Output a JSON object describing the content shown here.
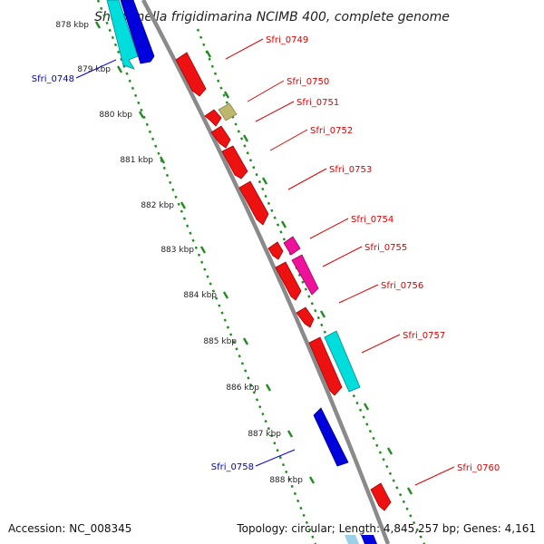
{
  "title": "Shewanella frigidimarina NCIMB 400, complete genome",
  "footer": {
    "accession": "Accession: NC_008345",
    "summary": "Topology: circular; Length: 4,845,257 bp; Genes: 4,161"
  },
  "scale_labels": [
    "878 kbp",
    "879 kbp",
    "880 kbp",
    "881 kbp",
    "882 kbp",
    "883 kbp",
    "884 kbp",
    "885 kbp",
    "886 kbp",
    "887 kbp",
    "888 kbp"
  ],
  "gene_labels": {
    "forward": [
      "Sfri_0749",
      "Sfri_0750",
      "Sfri_0751",
      "Sfri_0752",
      "Sfri_0753",
      "Sfri_0754",
      "Sfri_0755",
      "Sfri_0756",
      "Sfri_0757",
      "Sfri_0760"
    ],
    "reverse": [
      "Sfri_0748",
      "Sfri_0758"
    ]
  },
  "colors": {
    "forward_label": "#dd0000",
    "reverse_label": "#0000cc",
    "backbone": "#8a8a8a",
    "tick_marks": "#228B22",
    "cds_red": "#ee1111",
    "cds_magenta": "#ee1199",
    "cds_cyan": "#00dddd",
    "cds_blue": "#0000dd",
    "cds_khaki": "#bdb76b"
  }
}
